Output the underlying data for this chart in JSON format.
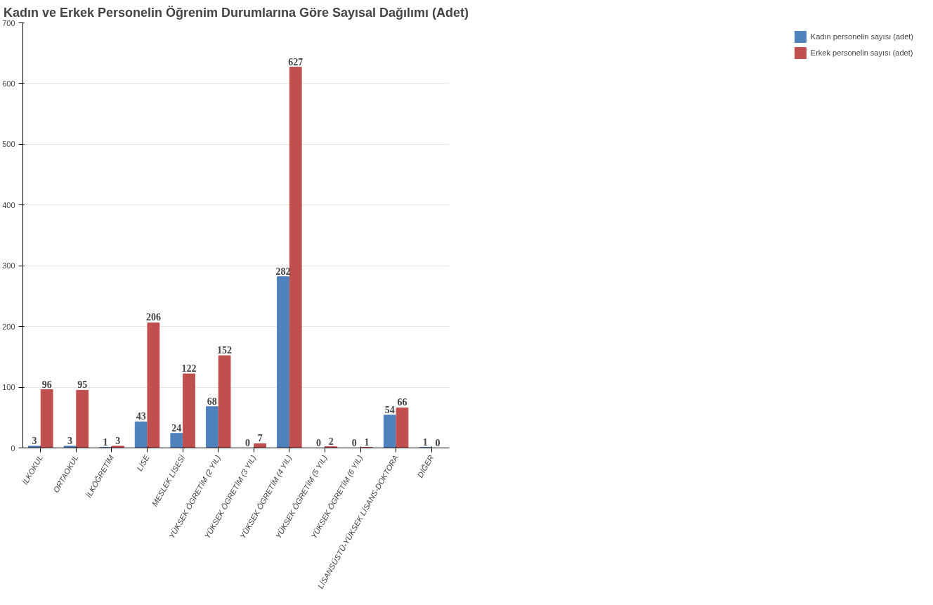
{
  "chart_data": {
    "type": "bar",
    "title": "Kadın ve Erkek Personelin Öğrenim Durumlarına Göre Sayısal Dağılımı (Adet)",
    "categories": [
      "İLKOKUL",
      "ORTAOKUL",
      "İLKÖĞRETİM",
      "LİSE",
      "MESLEK LİSESİ",
      "YÜKSEK ÖGRETİM (2 YIL)",
      "YÜKSEK ÖGRETİM (3 YIL)",
      "YÜKSEK ÖGRETİM (4 YIL)",
      "YÜKSEK ÖGRETİM (5 YIL)",
      "YÜKSEK ÖGRETİM (6 YIL)",
      "LİSANSÜSTÜ-YÜKSEK LİSANS-DOKTORA",
      "DİĞER"
    ],
    "series": [
      {
        "name": "Kadın personelin sayısı (adet)",
        "color": "#4f81bd",
        "values": [
          3,
          3,
          1,
          43,
          24,
          68,
          0,
          282,
          0,
          0,
          54,
          1
        ]
      },
      {
        "name": "Erkek personelin sayısı (adet)",
        "color": "#c0504d",
        "values": [
          96,
          95,
          3,
          206,
          122,
          152,
          7,
          627,
          2,
          1,
          66,
          0
        ]
      }
    ],
    "ylim": [
      0,
      700
    ],
    "yticks": [
      0,
      100,
      200,
      300,
      400,
      500,
      600,
      700
    ],
    "grid": "y",
    "legend": "right",
    "data_labels": true
  }
}
